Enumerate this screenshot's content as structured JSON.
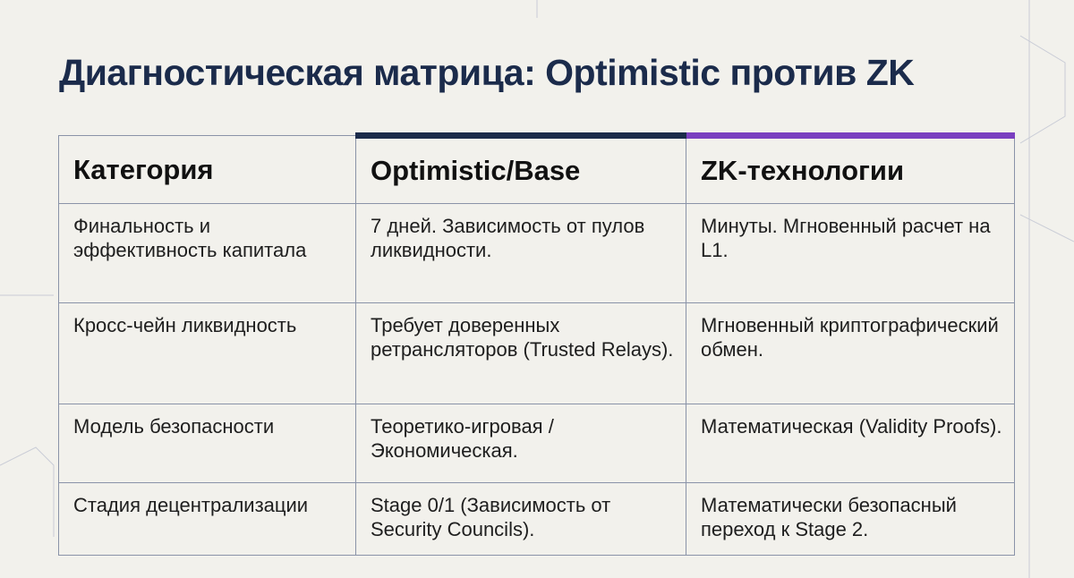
{
  "title": "Диагностическая матрица: Optimistic против ZK",
  "table": {
    "header": [
      "Категория",
      "Optimistic/Base",
      "ZK-технологии"
    ],
    "rows": [
      [
        "Финальность и эффективность капитала",
        "7 дней. Зависимость от пулов ликвидности.",
        "Минуты. Мгновенный расчет на L1."
      ],
      [
        "Кросс-чейн ликвидность",
        "Требует доверенных ретрансляторов (Trusted Relays).",
        "Мгновенный криптографический обмен."
      ],
      [
        "Модель безопасности",
        "Теоретико-игровая / Экономическая.",
        "Математическая (Validity Proofs)."
      ],
      [
        "Стадия децентрализации",
        "Stage 0/1 (Зависимость от Security Councils).",
        "Математически безопасный переход к Stage 2."
      ]
    ]
  }
}
